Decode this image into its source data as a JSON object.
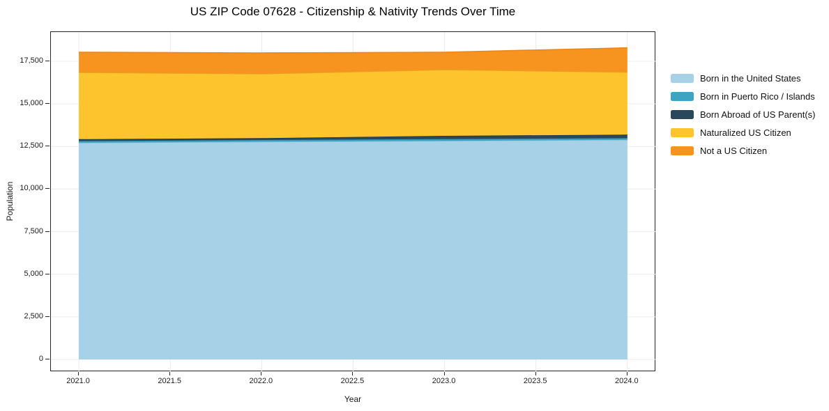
{
  "figure": {
    "title": "US ZIP Code 07628 - Citizenship & Nativity Trends Over Time",
    "xlabel": "Year",
    "ylabel": "Population"
  },
  "colors": {
    "background": "#ffffff",
    "grid": "#ebebeb",
    "spine": "#262626",
    "text": "#1a1a1a"
  },
  "chart_data": {
    "type": "area",
    "stacked": true,
    "title": "US ZIP Code 07628 - Citizenship & Nativity Trends Over Time",
    "xlabel": "Year",
    "ylabel": "Population",
    "grid": true,
    "legend_position": "right-outside",
    "x": [
      2021,
      2022,
      2023,
      2024
    ],
    "series": [
      {
        "name": "Born in the United States",
        "values": [
          12720,
          12780,
          12830,
          12890
        ],
        "color": "#a6d1e6",
        "edge": "#86bdd8"
      },
      {
        "name": "Born in Puerto Rico / Islands",
        "values": [
          100,
          100,
          105,
          100
        ],
        "color": "#3da4c2",
        "edge": "#2e94b3"
      },
      {
        "name": "Born Abroad of US Parent(s)",
        "values": [
          110,
          110,
          190,
          205
        ],
        "color": "#29485c",
        "edge": "#1d3648"
      },
      {
        "name": "Naturalized US Citizen",
        "values": [
          3920,
          3775,
          3885,
          3665
        ],
        "color": "#fdc42e",
        "edge": "#e3a81c"
      },
      {
        "name": "Not a US Citizen",
        "values": [
          1180,
          1225,
          1020,
          1430
        ],
        "color": "#f7941f",
        "edge": "#e9861b"
      }
    ],
    "stacked_totals": [
      18030,
      17990,
      18030,
      18290
    ],
    "x_tick_values": [
      2021,
      2021.5,
      2022,
      2022.5,
      2023,
      2023.5,
      2024
    ],
    "x_tick_labels": [
      "2021.0",
      "2021.5",
      "2022.0",
      "2022.5",
      "2023.0",
      "2023.5",
      "2024.0"
    ],
    "y_tick_values": [
      0,
      2500,
      5000,
      7500,
      10000,
      12500,
      15000,
      17500
    ],
    "y_tick_labels": [
      "0",
      "2,500",
      "5,000",
      "7,500",
      "10,000",
      "12,500",
      "15,000",
      "17,500"
    ],
    "x_range": [
      2020.847,
      2024.157
    ],
    "y_range": [
      -736,
      19217
    ]
  }
}
